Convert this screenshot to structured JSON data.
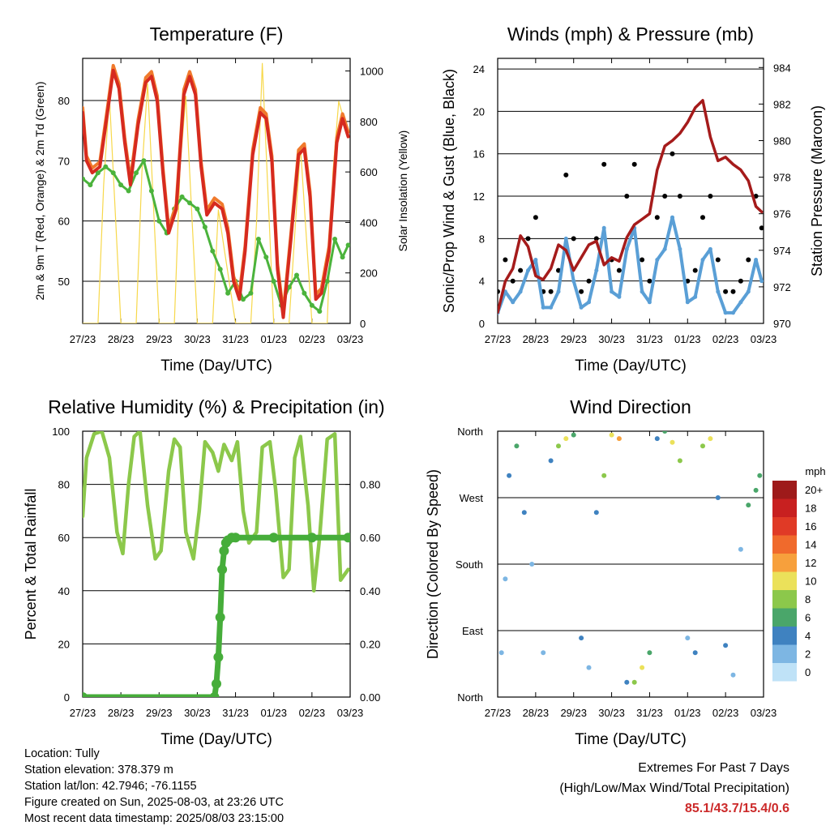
{
  "colors": {
    "temp_2m": "#d62a1f",
    "temp_9m": "#f07a2c",
    "dewpoint": "#4bb33c",
    "solar": "#f7d84b",
    "gust": "#000000",
    "wind": "#5a9fd6",
    "pressure": "#a51b1b",
    "rh": "#8cc84b",
    "precip": "#46ad3a"
  },
  "x_ticks": [
    "27/23",
    "28/23",
    "29/23",
    "30/23",
    "31/23",
    "01/23",
    "02/23",
    "03/23"
  ],
  "chart_data": [
    {
      "id": "temperature",
      "type": "line",
      "title": "Temperature (F)",
      "xlabel": "Time (Day/UTC)",
      "ylabel": "2m & 9m T (Red, Orange) & 2m Td (Green)",
      "y2label": "Solar Insolation (Yellow)",
      "ylim": [
        43,
        87
      ],
      "y2lim": [
        0,
        1050
      ],
      "yticks": [
        50,
        60,
        70,
        80
      ],
      "y2ticks": [
        0,
        200,
        400,
        600,
        800,
        1000
      ],
      "grid": "y",
      "series": [
        {
          "key": "temp",
          "x": [
            0,
            0.1,
            0.25,
            0.45,
            0.65,
            0.8,
            0.95,
            1.1,
            1.25,
            1.45,
            1.65,
            1.8,
            1.95,
            2.1,
            2.25,
            2.45,
            2.65,
            2.8,
            2.95,
            3.1,
            3.25,
            3.45,
            3.65,
            3.8,
            3.95,
            4.1,
            4.25,
            4.45,
            4.65,
            4.8,
            4.95,
            5.1,
            5.25,
            5.45,
            5.65,
            5.8,
            5.95,
            6.1,
            6.25,
            6.45,
            6.65,
            6.8,
            6.95
          ],
          "y": [
            78,
            70,
            68,
            69,
            78,
            85,
            82,
            73,
            66,
            76,
            83,
            84,
            80,
            68,
            58,
            62,
            81,
            84,
            81,
            69,
            61,
            63,
            62,
            58,
            50,
            47,
            55,
            71,
            78,
            77,
            70,
            52,
            44,
            57,
            71,
            72,
            64,
            47,
            48,
            55,
            73,
            77,
            74
          ]
        },
        {
          "key": "dew",
          "x": [
            0,
            0.2,
            0.4,
            0.6,
            0.8,
            1.0,
            1.2,
            1.4,
            1.6,
            1.8,
            2.0,
            2.2,
            2.4,
            2.6,
            2.8,
            3.0,
            3.2,
            3.4,
            3.6,
            3.8,
            4.0,
            4.2,
            4.4,
            4.6,
            4.8,
            5.0,
            5.2,
            5.4,
            5.6,
            5.8,
            6.0,
            6.2,
            6.4,
            6.6,
            6.8,
            6.95
          ],
          "y": [
            67,
            66,
            68,
            69,
            68,
            66,
            65,
            68,
            70,
            65,
            60,
            58,
            62,
            64,
            63,
            62,
            59,
            55,
            52,
            48,
            50,
            47,
            48,
            57,
            54,
            50,
            46,
            49,
            51,
            48,
            46,
            45,
            50,
            57,
            54,
            56
          ]
        },
        {
          "key": "solar",
          "x": [
            0,
            0.1,
            0.4,
            0.55,
            0.7,
            1.0,
            1.4,
            1.55,
            1.7,
            2.0,
            2.4,
            2.55,
            2.7,
            3.0,
            3.4,
            3.55,
            3.7,
            4.0,
            4.4,
            4.55,
            4.7,
            5.0,
            5.4,
            5.55,
            5.7,
            6.0,
            6.4,
            6.55,
            6.7,
            6.95
          ],
          "y": [
            0,
            0,
            0,
            550,
            900,
            0,
            0,
            600,
            950,
            0,
            0,
            620,
            900,
            0,
            0,
            450,
            300,
            0,
            0,
            400,
            1030,
            0,
            0,
            350,
            700,
            0,
            0,
            600,
            880,
            750
          ]
        }
      ]
    },
    {
      "id": "winds",
      "type": "scatter",
      "title": "Winds (mph) & Pressure (mb)",
      "xlabel": "Time (Day/UTC)",
      "ylabel": "Sonic/Prop Wind & Gust (Blue, Black)",
      "y2label": "Station Pressure (Maroon)",
      "ylim": [
        0,
        25
      ],
      "y2lim": [
        970,
        984.5
      ],
      "yticks": [
        0,
        4,
        8,
        12,
        16,
        20,
        24
      ],
      "y2ticks": [
        970,
        972,
        974,
        976,
        978,
        980,
        982,
        984
      ],
      "grid": "y",
      "series": [
        {
          "key": "gust",
          "x": [
            0,
            0.2,
            0.4,
            0.6,
            0.8,
            1.0,
            1.2,
            1.4,
            1.6,
            1.8,
            2.0,
            2.2,
            2.4,
            2.6,
            2.8,
            3.0,
            3.2,
            3.4,
            3.6,
            3.8,
            4.0,
            4.2,
            4.4,
            4.6,
            4.8,
            5.0,
            5.2,
            5.4,
            5.6,
            5.8,
            6.0,
            6.2,
            6.4,
            6.6,
            6.8,
            6.95
          ],
          "y": [
            3,
            6,
            4,
            5,
            8,
            10,
            3,
            3,
            5,
            14,
            8,
            3,
            4,
            8,
            15,
            6,
            5,
            12,
            15,
            6,
            4,
            10,
            12,
            16,
            12,
            4,
            5,
            10,
            12,
            6,
            3,
            3,
            4,
            6,
            12,
            9
          ]
        },
        {
          "key": "wind",
          "x": [
            0,
            0.2,
            0.4,
            0.6,
            0.8,
            1.0,
            1.2,
            1.4,
            1.6,
            1.8,
            2.0,
            2.2,
            2.4,
            2.6,
            2.8,
            3.0,
            3.2,
            3.4,
            3.6,
            3.8,
            4.0,
            4.2,
            4.4,
            4.6,
            4.8,
            5.0,
            5.2,
            5.4,
            5.6,
            5.8,
            6.0,
            6.2,
            6.4,
            6.6,
            6.8,
            6.95
          ],
          "y": [
            1,
            3,
            2,
            3,
            5,
            6,
            1.5,
            1.5,
            3,
            8,
            4,
            1.5,
            2,
            5,
            9,
            3,
            2.5,
            7,
            9,
            3,
            2,
            6,
            7,
            10,
            7,
            2,
            2.5,
            6,
            7,
            3,
            1,
            1,
            2,
            3,
            6,
            4
          ]
        },
        {
          "key": "pressure",
          "x": [
            0,
            0.2,
            0.4,
            0.6,
            0.8,
            1.0,
            1.2,
            1.4,
            1.6,
            1.8,
            2.0,
            2.2,
            2.4,
            2.6,
            2.8,
            3.0,
            3.2,
            3.4,
            3.6,
            3.8,
            4.0,
            4.2,
            4.4,
            4.6,
            4.8,
            5.0,
            5.2,
            5.4,
            5.6,
            5.8,
            6.0,
            6.2,
            6.4,
            6.6,
            6.8,
            6.95
          ],
          "y": [
            970.6,
            972.3,
            973.0,
            974.8,
            974.2,
            972.6,
            972.4,
            973.0,
            974.3,
            974.0,
            972.9,
            973.6,
            974.3,
            974.5,
            973.2,
            973.6,
            973.4,
            974.7,
            975.4,
            975.7,
            976.0,
            978.4,
            979.7,
            980.0,
            980.4,
            981.0,
            981.8,
            982.2,
            980.2,
            978.9,
            979.1,
            978.7,
            978.4,
            977.8,
            976.4,
            976.1
          ]
        }
      ]
    },
    {
      "id": "humidity",
      "type": "line",
      "title": "Relative Humidity (%) & Precipitation (in)",
      "xlabel": "Time (Day/UTC)",
      "ylabel": "Percent & Total Rainfall",
      "ylim": [
        0,
        100
      ],
      "y2lim": [
        0,
        1.0
      ],
      "yticks": [
        0,
        20,
        40,
        60,
        80,
        100
      ],
      "y2ticks": [
        "0.00",
        "0.20",
        "0.40",
        "0.60",
        "0.80"
      ],
      "grid": "y",
      "series": [
        {
          "key": "rh",
          "x": [
            0,
            0.1,
            0.3,
            0.5,
            0.7,
            0.9,
            1.05,
            1.2,
            1.35,
            1.5,
            1.7,
            1.9,
            2.05,
            2.25,
            2.4,
            2.55,
            2.7,
            2.9,
            3.05,
            3.2,
            3.4,
            3.55,
            3.7,
            3.9,
            4.05,
            4.2,
            4.35,
            4.55,
            4.7,
            4.9,
            5.05,
            5.25,
            5.4,
            5.55,
            5.7,
            5.9,
            6.05,
            6.2,
            6.4,
            6.6,
            6.75,
            6.95
          ],
          "y": [
            68,
            90,
            99,
            100,
            90,
            62,
            54,
            80,
            98,
            100,
            72,
            52,
            55,
            85,
            97,
            94,
            62,
            52,
            70,
            96,
            92,
            85,
            95,
            89,
            96,
            70,
            58,
            62,
            94,
            96,
            78,
            45,
            48,
            90,
            98,
            72,
            40,
            60,
            97,
            99,
            44,
            48
          ]
        },
        {
          "key": "precip",
          "x": [
            0,
            3.45,
            3.5,
            3.55,
            3.6,
            3.65,
            3.7,
            3.75,
            3.8,
            3.9,
            4.0,
            5.0,
            6.0,
            6.95
          ],
          "y": [
            0,
            0,
            0.05,
            0.15,
            0.3,
            0.48,
            0.55,
            0.58,
            0.59,
            0.6,
            0.6,
            0.6,
            0.6,
            0.6
          ]
        }
      ]
    },
    {
      "id": "direction",
      "type": "scatter",
      "title": "Wind Direction",
      "xlabel": "Time (Day/UTC)",
      "ylabel": "Direction (Colored By Speed)",
      "yticks": [
        "North",
        "East",
        "South",
        "West",
        "North"
      ],
      "ylim": [
        0,
        360
      ],
      "grid": "y",
      "colorbar": {
        "unit": "mph",
        "labels": [
          "20+",
          "18",
          "16",
          "14",
          "12",
          "10",
          "8",
          "6",
          "4",
          "2",
          "0"
        ],
        "colors": [
          "#9e1a1a",
          "#c82020",
          "#e03a26",
          "#f06a2c",
          "#f7a03c",
          "#ebe15a",
          "#8cc84b",
          "#4aa66a",
          "#3f82c0",
          "#7db6e3",
          "#bfe2f7"
        ]
      },
      "series": [
        {
          "key": "dir",
          "x": [
            0.1,
            0.2,
            0.3,
            0.5,
            0.7,
            0.9,
            1.2,
            1.4,
            1.6,
            1.8,
            2.0,
            2.2,
            2.4,
            2.6,
            2.8,
            3.0,
            3.2,
            3.4,
            3.6,
            3.8,
            4.0,
            4.2,
            4.4,
            4.6,
            4.8,
            5.0,
            5.2,
            5.4,
            5.6,
            5.8,
            6.0,
            6.2,
            6.4,
            6.6,
            6.8,
            6.9
          ],
          "y": [
            60,
            160,
            300,
            340,
            250,
            180,
            60,
            320,
            340,
            350,
            355,
            80,
            40,
            250,
            300,
            355,
            350,
            20,
            20,
            40,
            60,
            350,
            360,
            345,
            320,
            80,
            60,
            340,
            350,
            270,
            70,
            30,
            200,
            260,
            280,
            300
          ],
          "speed": [
            1,
            2,
            3,
            6,
            3,
            2,
            2,
            4,
            8,
            10,
            6,
            3,
            2,
            4,
            8,
            10,
            12,
            4,
            8,
            10,
            6,
            3,
            6,
            10,
            8,
            2,
            3,
            7,
            9,
            3,
            3,
            1,
            2,
            5,
            6,
            5
          ]
        }
      ]
    }
  ],
  "info": {
    "location": "Location: Tully",
    "elevation": "Station elevation: 378.379 m",
    "latlon": "Station lat/lon: 42.7946; -76.1155",
    "created": "Figure created on Sun, 2025-08-03, at 23:26 UTC",
    "recent": "Most recent data timestamp: 2025/08/03 23:15:00"
  },
  "extremes": {
    "line1": "Extremes For Past 7 Days",
    "line2": "(High/Low/Max Wind/Total Precipitation)",
    "values": "85.1/43.7/15.4/0.6"
  }
}
